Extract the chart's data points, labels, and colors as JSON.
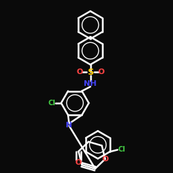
{
  "bg_color": "#0a0a0a",
  "bond_color": "#ffffff",
  "heteroatom_colors": {
    "O": "#ff4444",
    "N": "#4444ff",
    "S": "#ffcc00",
    "Cl": "#44cc44"
  },
  "title": ""
}
